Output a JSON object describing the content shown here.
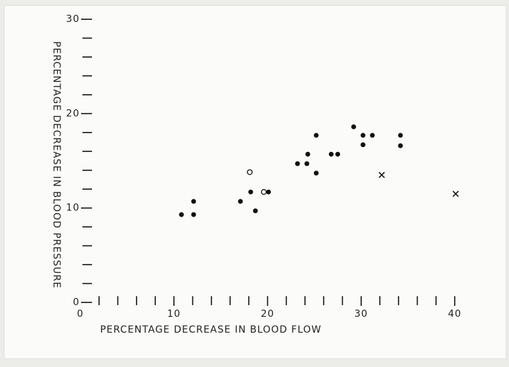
{
  "chart_data": {
    "type": "scatter",
    "xlabel": "PERCENTAGE DECREASE IN BLOOD FLOW",
    "ylabel": "PERCENTAGE DECREASE IN BLOOD PRESSURE",
    "xlim": [
      0,
      40
    ],
    "ylim": [
      0,
      30
    ],
    "xticks": [
      0,
      10,
      20,
      30,
      40
    ],
    "yticks": [
      0,
      10,
      20,
      30
    ],
    "xticks_minor": [
      2,
      4,
      6,
      8,
      12,
      14,
      16,
      18,
      22,
      24,
      26,
      28,
      32,
      34,
      36,
      38
    ],
    "yticks_minor": [
      2,
      4,
      6,
      8,
      12,
      14,
      16,
      18,
      22,
      24,
      26,
      28
    ],
    "color": "#111111",
    "series": [
      {
        "marker": "dot",
        "x": [
          10.8,
          12.1,
          12.1,
          17.1,
          18.2,
          18.7,
          20.1,
          23.2,
          24.2,
          24.3,
          25.2,
          25.2,
          26.8,
          27.5,
          29.2,
          30.2,
          30.2,
          31.2,
          34.2,
          34.2
        ],
        "values": [
          9.3,
          9.3,
          10.7,
          10.7,
          11.7,
          9.7,
          11.7,
          14.7,
          14.7,
          15.7,
          13.7,
          17.7,
          15.7,
          15.7,
          18.6,
          16.7,
          17.7,
          17.7,
          17.7,
          16.6
        ]
      },
      {
        "marker": "circle",
        "x": [
          18.1,
          19.6
        ],
        "values": [
          13.8,
          11.7
        ]
      },
      {
        "marker": "cross",
        "x": [
          32.2,
          40.1
        ],
        "values": [
          13.5,
          11.5
        ]
      }
    ]
  }
}
